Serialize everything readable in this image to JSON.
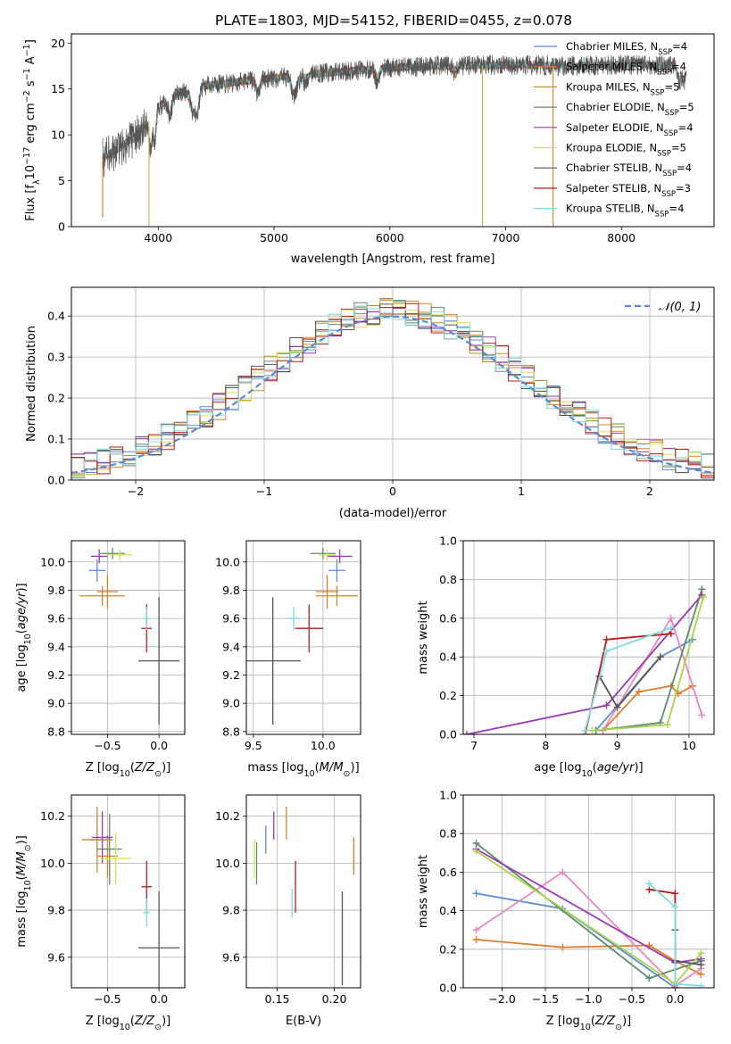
{
  "figure_title": "PLATE=1803, MJD=54152, FIBERID=0455, z=0.078",
  "colors": {
    "Chabrier MILES": "#5b8bd6",
    "Salpeter MILES": "#e07b2a",
    "Kroupa MILES": "#c98a2e",
    "Chabrier ELODIE": "#5e8d6c",
    "Salpeter ELODIE": "#9a3ab5",
    "Kroupa ELODIE": "#d7e34a",
    "Chabrier STELIB": "#555555",
    "Salpeter STELIB": "#b81c1c",
    "Kroupa STELIB": "#7fdbe3",
    "normal_fit": "#5b8bd6",
    "salpeter_miles_mw": "#ea86c2",
    "kroupa_elodie_mw": "#a7d64a"
  },
  "chart_data": [
    {
      "id": "spectrum",
      "type": "line",
      "title": "PLATE=1803, MJD=54152, FIBERID=0455, z=0.078",
      "xlabel": "wavelength [Angstrom, rest frame]",
      "ylabel": "Flux [f_λ 10^-17 erg cm^-2 s^-1 A^-1]",
      "xlim": [
        3250,
        8800
      ],
      "ylim": [
        0,
        21
      ],
      "xticks": [
        4000,
        5000,
        6000,
        7000,
        8000
      ],
      "yticks": [
        0,
        5,
        10,
        15,
        20
      ],
      "grid": false,
      "legend_position": "right",
      "legend": [
        {
          "label": "Chabrier MILES, N",
          "sub": "SSP",
          "tail": "=4"
        },
        {
          "label": "Salpeter MILES, N",
          "sub": "SSP",
          "tail": "=4"
        },
        {
          "label": "Kroupa MILES, N",
          "sub": "SSP",
          "tail": "=5"
        },
        {
          "label": "Chabrier ELODIE, N",
          "sub": "SSP",
          "tail": "=5"
        },
        {
          "label": "Salpeter ELODIE, N",
          "sub": "SSP",
          "tail": "=4"
        },
        {
          "label": "Kroupa ELODIE, N",
          "sub": "SSP",
          "tail": "=5"
        },
        {
          "label": "Chabrier STELIB, N",
          "sub": "SSP",
          "tail": "=4"
        },
        {
          "label": "Salpeter STELIB, N",
          "sub": "SSP",
          "tail": "=3"
        },
        {
          "label": "Kroupa STELIB, N",
          "sub": "SSP",
          "tail": "=4"
        }
      ],
      "continuum": [
        [
          3520,
          7.5
        ],
        [
          3650,
          8.5
        ],
        [
          3800,
          9.8
        ],
        [
          3920,
          11.5
        ],
        [
          4000,
          13.0
        ],
        [
          4150,
          14.5
        ],
        [
          4400,
          15.3
        ],
        [
          4700,
          15.8
        ],
        [
          5000,
          16.2
        ],
        [
          5300,
          16.6
        ],
        [
          5600,
          16.9
        ],
        [
          6000,
          17.3
        ],
        [
          6400,
          17.5
        ],
        [
          6800,
          17.6
        ],
        [
          7200,
          17.6
        ],
        [
          7500,
          17.5
        ],
        [
          7900,
          17.6
        ],
        [
          8400,
          17.6
        ],
        [
          8560,
          17.6
        ]
      ],
      "absorption": [
        [
          3934,
          3.5,
          12
        ],
        [
          3969,
          3.0,
          12
        ],
        [
          4102,
          2.0,
          15
        ],
        [
          4300,
          2.5,
          25
        ],
        [
          4340,
          2.0,
          15
        ],
        [
          4861,
          1.5,
          15
        ],
        [
          5175,
          2.0,
          25
        ],
        [
          5270,
          1.0,
          15
        ],
        [
          5890,
          1.5,
          15
        ],
        [
          6563,
          1.0,
          15
        ],
        [
          8500,
          1.5,
          20
        ],
        [
          8545,
          1.5,
          20
        ],
        [
          8665,
          1.5,
          20
        ]
      ],
      "spikes_down": [
        [
          3520,
          1.0
        ],
        [
          3920,
          0.0
        ],
        [
          6800,
          0.0
        ],
        [
          7410,
          0.0
        ]
      ]
    },
    {
      "id": "residuals",
      "type": "area",
      "xlabel": "(data-model)/error",
      "ylabel": "Normed distribution",
      "xlim": [
        -2.5,
        2.5
      ],
      "ylim": [
        0,
        0.47
      ],
      "xticks": [
        -2,
        -1,
        0,
        1,
        2
      ],
      "yticks": [
        0.0,
        0.1,
        0.2,
        0.3,
        0.4
      ],
      "grid": true,
      "legend_position": "top-right",
      "legend": [
        "𝒩(0, 1)"
      ],
      "bin_width": 0.1,
      "bin_start": -2.5
    },
    {
      "id": "age_vs_z",
      "type": "scatter",
      "xlabel": "Z [log10(Z/Z⊙)]",
      "ylabel": "age [log10(age/yr)]",
      "xlim": [
        -0.85,
        0.25
      ],
      "ylim": [
        8.78,
        10.15
      ],
      "xticks": [
        -0.5,
        0.0
      ],
      "yticks": [
        8.8,
        9.0,
        9.2,
        9.4,
        9.6,
        9.8,
        10.0
      ],
      "grid": true,
      "points": [
        {
          "model": "Chabrier MILES",
          "x": -0.6,
          "y": 9.94,
          "xerr": 0.08,
          "yerr": 0.08
        },
        {
          "model": "Salpeter MILES",
          "x": -0.5,
          "y": 9.79,
          "xerr": 0.1,
          "yerr": 0.12
        },
        {
          "model": "Kroupa MILES",
          "x": -0.55,
          "y": 9.76,
          "xerr": 0.22,
          "yerr": 0.07
        },
        {
          "model": "Chabrier ELODIE",
          "x": -0.45,
          "y": 10.06,
          "xerr": 0.12,
          "yerr": 0.04
        },
        {
          "model": "Salpeter ELODIE",
          "x": -0.58,
          "y": 10.04,
          "xerr": 0.08,
          "yerr": 0.05
        },
        {
          "model": "Kroupa ELODIE",
          "x": -0.38,
          "y": 10.05,
          "xerr": 0.12,
          "yerr": 0.04
        },
        {
          "model": "Chabrier STELIB",
          "x": 0.0,
          "y": 9.3,
          "xerr": 0.2,
          "yerr": 0.45
        },
        {
          "model": "Salpeter STELIB",
          "x": -0.12,
          "y": 9.53,
          "xerr": 0.05,
          "yerr": 0.17
        },
        {
          "model": "Kroupa STELIB",
          "x": -0.12,
          "y": 9.6,
          "xerr": 0.03,
          "yerr": 0.08
        }
      ]
    },
    {
      "id": "age_vs_mass",
      "type": "scatter",
      "xlabel": "mass [log10(M/M⊙)]",
      "ylabel": "",
      "xlim": [
        9.45,
        10.27
      ],
      "ylim": [
        8.78,
        10.15
      ],
      "xticks": [
        9.5,
        10.0
      ],
      "yticks": [
        8.8,
        9.0,
        9.2,
        9.4,
        9.6,
        9.8,
        10.0
      ],
      "grid": true,
      "points": [
        {
          "model": "Chabrier MILES",
          "x": 10.1,
          "y": 9.94,
          "xerr": 0.06,
          "yerr": 0.08
        },
        {
          "model": "Salpeter MILES",
          "x": 10.03,
          "y": 9.79,
          "xerr": 0.08,
          "yerr": 0.12
        },
        {
          "model": "Kroupa MILES",
          "x": 10.1,
          "y": 9.76,
          "xerr": 0.15,
          "yerr": 0.07
        },
        {
          "model": "Chabrier ELODIE",
          "x": 10.0,
          "y": 10.06,
          "xerr": 0.09,
          "yerr": 0.04
        },
        {
          "model": "Salpeter ELODIE",
          "x": 10.12,
          "y": 10.04,
          "xerr": 0.09,
          "yerr": 0.05
        },
        {
          "model": "Kroupa ELODIE",
          "x": 10.03,
          "y": 10.05,
          "xerr": 0.06,
          "yerr": 0.04
        },
        {
          "model": "Chabrier STELIB",
          "x": 9.64,
          "y": 9.3,
          "xerr": 0.2,
          "yerr": 0.45
        },
        {
          "model": "Salpeter STELIB",
          "x": 9.9,
          "y": 9.53,
          "xerr": 0.1,
          "yerr": 0.17
        },
        {
          "model": "Kroupa STELIB",
          "x": 9.79,
          "y": 9.6,
          "xerr": 0.05,
          "yerr": 0.08
        }
      ]
    },
    {
      "id": "mass_weight_vs_age",
      "type": "line",
      "xlabel": "age [log10(age/yr)]",
      "ylabel": "mass weight",
      "xlim": [
        6.85,
        10.35
      ],
      "ylim": [
        0,
        1.0
      ],
      "xticks": [
        7,
        8,
        9,
        10
      ],
      "yticks": [
        0.0,
        0.2,
        0.4,
        0.6,
        0.8,
        1.0
      ],
      "grid": true,
      "series": [
        {
          "model": "Chabrier MILES",
          "x": [
            8.7,
            9.6,
            10.05
          ],
          "y": [
            0.02,
            0.4,
            0.49
          ]
        },
        {
          "model": "Salpeter MILES",
          "x": [
            8.8,
            9.3,
            9.75,
            9.85,
            10.05
          ],
          "y": [
            0.02,
            0.22,
            0.25,
            0.21,
            0.25
          ]
        },
        {
          "model": "Salpeter MILES",
          "color_key": "salpeter_miles_mw",
          "x": [
            8.8,
            9.75,
            10.18
          ],
          "y": [
            0.02,
            0.6,
            0.1
          ]
        },
        {
          "model": "Chabrier ELODIE",
          "x": [
            8.7,
            9.6,
            10.18
          ],
          "y": [
            0.02,
            0.06,
            0.75
          ]
        },
        {
          "model": "Salpeter ELODIE",
          "x": [
            6.9,
            8.85,
            10.18
          ],
          "y": [
            0.0,
            0.15,
            0.72
          ]
        },
        {
          "model": "Kroupa ELODIE",
          "color_key": "kroupa_elodie_mw",
          "x": [
            8.65,
            9.7,
            10.2
          ],
          "y": [
            0.02,
            0.05,
            0.71
          ]
        },
        {
          "model": "Chabrier STELIB",
          "x": [
            8.75,
            9.0,
            9.6
          ],
          "y": [
            0.3,
            0.14,
            0.4
          ]
        },
        {
          "model": "Salpeter STELIB",
          "x": [
            8.55,
            8.85,
            9.75
          ],
          "y": [
            0.0,
            0.49,
            0.52
          ]
        },
        {
          "model": "Kroupa STELIB",
          "x": [
            8.55,
            8.85,
            9.75
          ],
          "y": [
            0.02,
            0.43,
            0.55
          ]
        }
      ]
    },
    {
      "id": "mass_vs_z",
      "type": "scatter",
      "xlabel": "Z [log10(Z/Z⊙)]",
      "ylabel": "mass [log10(M/M⊙)]",
      "xlim": [
        -0.85,
        0.25
      ],
      "ylim": [
        9.47,
        10.29
      ],
      "xticks": [
        -0.5,
        0.0
      ],
      "yticks": [
        9.6,
        9.8,
        10.0,
        10.2
      ],
      "grid": true,
      "points": [
        {
          "model": "Chabrier MILES",
          "x": -0.6,
          "y": 10.1,
          "xerr": 0.08,
          "yerr": 0.06
        },
        {
          "model": "Salpeter MILES",
          "x": -0.5,
          "y": 10.03,
          "xerr": 0.1,
          "yerr": 0.09
        },
        {
          "model": "Kroupa MILES",
          "x": -0.6,
          "y": 10.1,
          "xerr": 0.15,
          "yerr": 0.14
        },
        {
          "model": "Chabrier ELODIE",
          "x": -0.48,
          "y": 10.06,
          "xerr": 0.12,
          "yerr": 0.15
        },
        {
          "model": "Salpeter ELODIE",
          "x": -0.55,
          "y": 10.11,
          "xerr": 0.1,
          "yerr": 0.11
        },
        {
          "model": "Kroupa ELODIE",
          "x": -0.42,
          "y": 10.02,
          "xerr": 0.15,
          "yerr": 0.11
        },
        {
          "model": "Chabrier STELIB",
          "x": 0.0,
          "y": 9.64,
          "xerr": 0.2,
          "yerr": 0.24
        },
        {
          "model": "Salpeter STELIB",
          "x": -0.12,
          "y": 9.9,
          "xerr": 0.05,
          "yerr": 0.11
        },
        {
          "model": "Kroupa STELIB",
          "x": -0.12,
          "y": 9.79,
          "xerr": 0.03,
          "yerr": 0.06
        }
      ]
    },
    {
      "id": "mass_vs_ebv",
      "type": "scatter",
      "xlabel": "E(B-V)",
      "ylabel": "",
      "xlim": [
        0.123,
        0.223
      ],
      "ylim": [
        9.47,
        10.29
      ],
      "xticks": [
        0.15,
        0.2
      ],
      "yticks": [
        9.6,
        9.8,
        10.0,
        10.2
      ],
      "grid": true,
      "points": [
        {
          "model": "Chabrier MILES",
          "x": 0.14,
          "y": 10.1,
          "xerr": 0,
          "yerr": 0.06
        },
        {
          "model": "Salpeter MILES",
          "x": 0.217,
          "y": 10.03,
          "xerr": 0,
          "yerr": 0.08
        },
        {
          "model": "Kroupa MILES",
          "x": 0.158,
          "y": 10.17,
          "xerr": 0,
          "yerr": 0.07
        },
        {
          "model": "Chabrier ELODIE",
          "x": 0.132,
          "y": 10.0,
          "xerr": 0,
          "yerr": 0.09
        },
        {
          "model": "Salpeter ELODIE",
          "x": 0.147,
          "y": 10.16,
          "xerr": 0,
          "yerr": 0.06
        },
        {
          "model": "Kroupa ELODIE",
          "x": 0.13,
          "y": 10.02,
          "xerr": 0,
          "yerr": 0.08
        },
        {
          "model": "Chabrier STELIB",
          "x": 0.207,
          "y": 9.68,
          "xerr": 0,
          "yerr": 0.2
        },
        {
          "model": "Salpeter STELIB",
          "x": 0.166,
          "y": 9.9,
          "xerr": 0,
          "yerr": 0.11
        },
        {
          "model": "Kroupa STELIB",
          "x": 0.163,
          "y": 9.83,
          "xerr": 0,
          "yerr": 0.06
        }
      ]
    },
    {
      "id": "mass_weight_vs_z",
      "type": "line",
      "xlabel": "Z [log10(Z/Z⊙)]",
      "ylabel": "mass weight",
      "xlim": [
        -2.45,
        0.45
      ],
      "ylim": [
        0,
        1.0
      ],
      "xticks": [
        -2.0,
        -1.5,
        -1.0,
        -0.5,
        0.0
      ],
      "yticks": [
        0.0,
        0.2,
        0.4,
        0.6,
        0.8,
        1.0
      ],
      "grid": true,
      "series": [
        {
          "model": "Chabrier MILES",
          "x": [
            -2.3,
            -1.3,
            0.0
          ],
          "y": [
            0.49,
            0.41,
            0.0
          ]
        },
        {
          "model": "Salpeter MILES",
          "x": [
            -2.3,
            -1.3,
            -0.3,
            0.0,
            0.3
          ],
          "y": [
            0.25,
            0.21,
            0.22,
            0.14,
            0.07
          ]
        },
        {
          "model": "Salpeter MILES",
          "color_key": "salpeter_miles_mw",
          "x": [
            -2.3,
            -1.3,
            0.0,
            0.3
          ],
          "y": [
            0.3,
            0.6,
            0.01,
            0.1
          ]
        },
        {
          "model": "Chabrier ELODIE",
          "x": [
            -2.3,
            -0.3,
            0.3
          ],
          "y": [
            0.75,
            0.05,
            0.14
          ]
        },
        {
          "model": "Salpeter ELODIE",
          "x": [
            -2.3,
            0.0,
            0.3
          ],
          "y": [
            0.72,
            0.13,
            0.15
          ]
        },
        {
          "model": "Kroupa ELODIE",
          "color_key": "kroupa_elodie_mw",
          "x": [
            -2.3,
            0.0,
            0.3
          ],
          "y": [
            0.71,
            0.02,
            0.18
          ]
        },
        {
          "model": "Chabrier STELIB",
          "x": [
            0.0,
            0.0,
            0.3
          ],
          "y": [
            0.3,
            0.14,
            0.12
          ]
        },
        {
          "model": "Salpeter STELIB",
          "x": [
            -0.3,
            0.0,
            0.0
          ],
          "y": [
            0.51,
            0.49,
            0.0
          ]
        },
        {
          "model": "Kroupa STELIB",
          "x": [
            -0.3,
            0.0,
            0.0,
            0.3
          ],
          "y": [
            0.54,
            0.42,
            0.02,
            0.01
          ]
        }
      ]
    }
  ]
}
